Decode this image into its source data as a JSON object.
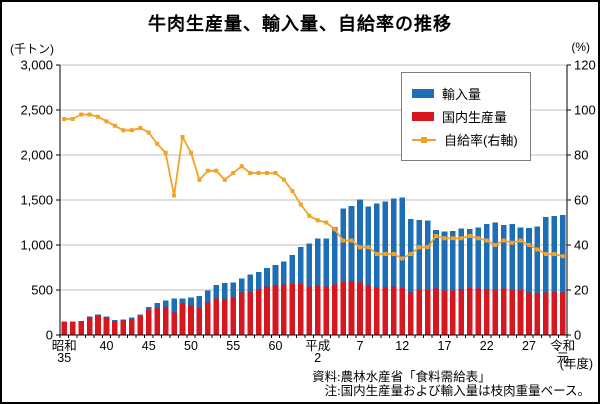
{
  "window": {
    "title": "牛肉生産量、輸入量、自給率の推移"
  },
  "chart_data": {
    "type": "bar",
    "subtype": "stacked-bar-with-line",
    "title": "牛肉生産量、輸入量、自給率の推移",
    "grid": "horizontal-on",
    "legend_position": "top-right-inside",
    "left_axis": {
      "unit": "(千トン)",
      "min": 0,
      "max": 3000,
      "step": 500,
      "tick_labels": [
        "0",
        "500",
        "1,000",
        "1,500",
        "2,000",
        "2,500",
        "3,000"
      ]
    },
    "right_axis": {
      "unit": "(%)",
      "min": 0,
      "max": 120,
      "step": 20,
      "tick_labels": [
        "0",
        "20",
        "40",
        "60",
        "80",
        "100",
        "120"
      ]
    },
    "x_axis": {
      "era_note": "(年度)",
      "start_year": 1960,
      "end_year": 2019,
      "ticks": [
        {
          "pos": 0,
          "label": "昭和\n35"
        },
        {
          "pos": 5,
          "label": "40"
        },
        {
          "pos": 10,
          "label": "45"
        },
        {
          "pos": 15,
          "label": "50"
        },
        {
          "pos": 20,
          "label": "55"
        },
        {
          "pos": 25,
          "label": "60"
        },
        {
          "pos": 30,
          "label": "平成\n2"
        },
        {
          "pos": 35,
          "label": "7"
        },
        {
          "pos": 40,
          "label": "12"
        },
        {
          "pos": 45,
          "label": "17"
        },
        {
          "pos": 50,
          "label": "22"
        },
        {
          "pos": 55,
          "label": "27"
        },
        {
          "pos": 59,
          "label": "令和\n元"
        }
      ]
    },
    "series": [
      {
        "name": "輸入量",
        "role": "bar-top",
        "color": "#1e6eb5",
        "values": [
          6,
          6,
          4,
          5,
          7,
          11,
          12,
          15,
          17,
          17,
          33,
          55,
          72,
          155,
          50,
          80,
          134,
          135,
          150,
          180,
          165,
          160,
          190,
          195,
          205,
          220,
          255,
          320,
          410,
          475,
          515,
          530,
          640,
          815,
          835,
          920,
          875,
          930,
          950,
          975,
          1010,
          820,
          780,
          775,
          655,
          654,
          657,
          671,
          660,
          679,
          720,
          745,
          710,
          730,
          695,
          713,
          744,
          838,
          845,
          860
        ]
      },
      {
        "name": "国内生産量",
        "role": "bar-bottom",
        "color": "#d7171f",
        "values": [
          142,
          142,
          154,
          199,
          220,
          196,
          153,
          160,
          178,
          210,
          278,
          302,
          310,
          250,
          354,
          335,
          298,
          361,
          403,
          400,
          418,
          470,
          483,
          505,
          539,
          556,
          563,
          568,
          569,
          539,
          555,
          540,
          560,
          590,
          600,
          585,
          555,
          530,
          531,
          539,
          520,
          470,
          500,
          500,
          514,
          497,
          497,
          513,
          520,
          517,
          512,
          505,
          514,
          506,
          501,
          475,
          463,
          471,
          476,
          471
        ]
      },
      {
        "name": "自給率(右軸)",
        "role": "line",
        "axis": "right",
        "color": "#f4a223",
        "values": [
          96,
          96,
          98,
          98,
          97,
          95,
          93,
          91,
          91,
          92,
          90,
          85,
          81,
          62,
          88,
          81,
          69,
          73,
          73,
          69,
          72,
          75,
          72,
          72,
          72,
          72,
          69,
          64,
          58,
          53,
          51,
          50,
          47,
          42,
          42,
          39,
          39,
          36,
          36,
          36,
          34,
          36,
          39,
          39,
          44,
          43,
          43,
          43,
          44,
          43,
          42,
          40,
          42,
          41,
          42,
          40,
          38,
          36,
          36,
          35
        ]
      }
    ],
    "source": "資料:農林水産省「食料需給表」",
    "note": "注:国内生産量および輸入量は枝肉重量ベース。"
  }
}
